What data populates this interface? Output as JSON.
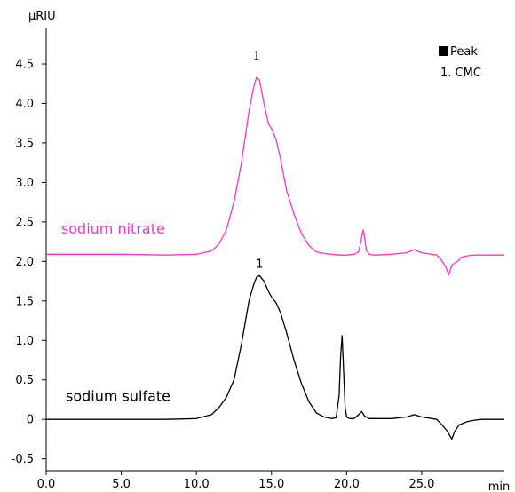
{
  "chart_data": {
    "type": "line",
    "xlabel": "min",
    "ylabel": "µRIU",
    "xlim": [
      0.0,
      30.5
    ],
    "ylim": [
      -0.65,
      4.95
    ],
    "x_ticks": [
      0.0,
      5.0,
      10.0,
      15.0,
      20.0,
      25.0
    ],
    "x_tick_labels": [
      "0.0",
      "5.0",
      "10.0",
      "15.0",
      "20.0",
      "25.0"
    ],
    "y_ticks": [
      -0.5,
      0,
      0.5,
      1.0,
      1.5,
      2.0,
      2.5,
      3.0,
      3.5,
      4.0,
      4.5
    ],
    "y_tick_labels": [
      "-0.5",
      "0",
      "0.5",
      "1.0",
      "1.5",
      "2.0",
      "2.5",
      "3.0",
      "3.5",
      "4.0",
      "4.5"
    ],
    "grid": false,
    "legend": {
      "position": "top-right",
      "title": "Peak",
      "entries": [
        "1. CMC"
      ]
    },
    "series": [
      {
        "name": "sodium nitrate",
        "color": "#ff33cc",
        "peak_label": "1",
        "peak_label_at": [
          14.0,
          4.55
        ],
        "label_anchor": [
          1.0,
          2.35
        ],
        "x": [
          0.0,
          5.0,
          8.0,
          10.0,
          11.0,
          11.5,
          12.0,
          12.5,
          13.0,
          13.5,
          13.8,
          14.0,
          14.2,
          14.5,
          14.8,
          15.0,
          15.3,
          15.6,
          16.0,
          16.5,
          17.0,
          17.5,
          18.0,
          18.5,
          19.0,
          19.5,
          20.0,
          20.5,
          20.8,
          21.0,
          21.1,
          21.2,
          21.3,
          21.5,
          21.8,
          22.0,
          23.0,
          24.0,
          24.5,
          25.0,
          26.0,
          26.3,
          26.6,
          26.8,
          27.0,
          27.2,
          27.4,
          27.6,
          28.0,
          28.5,
          29.0,
          30.5
        ],
        "y": [
          2.09,
          2.09,
          2.08,
          2.09,
          2.13,
          2.22,
          2.4,
          2.75,
          3.25,
          3.9,
          4.2,
          4.33,
          4.3,
          4.0,
          3.74,
          3.68,
          3.55,
          3.3,
          2.9,
          2.6,
          2.35,
          2.2,
          2.12,
          2.1,
          2.09,
          2.08,
          2.08,
          2.09,
          2.12,
          2.3,
          2.4,
          2.3,
          2.15,
          2.09,
          2.08,
          2.08,
          2.09,
          2.11,
          2.15,
          2.11,
          2.08,
          2.02,
          1.93,
          1.83,
          1.95,
          1.98,
          2.0,
          2.05,
          2.07,
          2.08,
          2.08,
          2.08
        ]
      },
      {
        "name": "sodium sulfate",
        "color": "#000000",
        "peak_label": "1",
        "peak_label_at": [
          14.2,
          1.92
        ],
        "label_anchor": [
          1.3,
          0.23
        ],
        "x": [
          0.0,
          5.0,
          8.0,
          10.0,
          11.0,
          11.5,
          12.0,
          12.5,
          13.0,
          13.5,
          13.8,
          14.0,
          14.2,
          14.5,
          14.8,
          15.0,
          15.3,
          15.6,
          16.0,
          16.5,
          17.0,
          17.5,
          18.0,
          18.5,
          19.0,
          19.3,
          19.5,
          19.6,
          19.7,
          19.8,
          19.9,
          20.0,
          20.2,
          20.5,
          20.8,
          21.0,
          21.2,
          21.5,
          22.0,
          23.0,
          24.0,
          24.5,
          25.0,
          26.0,
          26.4,
          26.7,
          27.0,
          27.2,
          27.5,
          28.0,
          28.5,
          29.0,
          30.5
        ],
        "y": [
          0.0,
          0.0,
          0.0,
          0.01,
          0.06,
          0.15,
          0.28,
          0.5,
          0.95,
          1.5,
          1.7,
          1.8,
          1.82,
          1.75,
          1.62,
          1.55,
          1.48,
          1.35,
          1.1,
          0.75,
          0.45,
          0.22,
          0.08,
          0.03,
          0.01,
          0.02,
          0.3,
          0.8,
          1.06,
          0.6,
          0.15,
          0.03,
          0.01,
          0.01,
          0.06,
          0.1,
          0.04,
          0.01,
          0.01,
          0.01,
          0.03,
          0.06,
          0.03,
          0.0,
          -0.08,
          -0.15,
          -0.25,
          -0.15,
          -0.07,
          -0.03,
          -0.01,
          0.0,
          0.0
        ]
      }
    ]
  }
}
